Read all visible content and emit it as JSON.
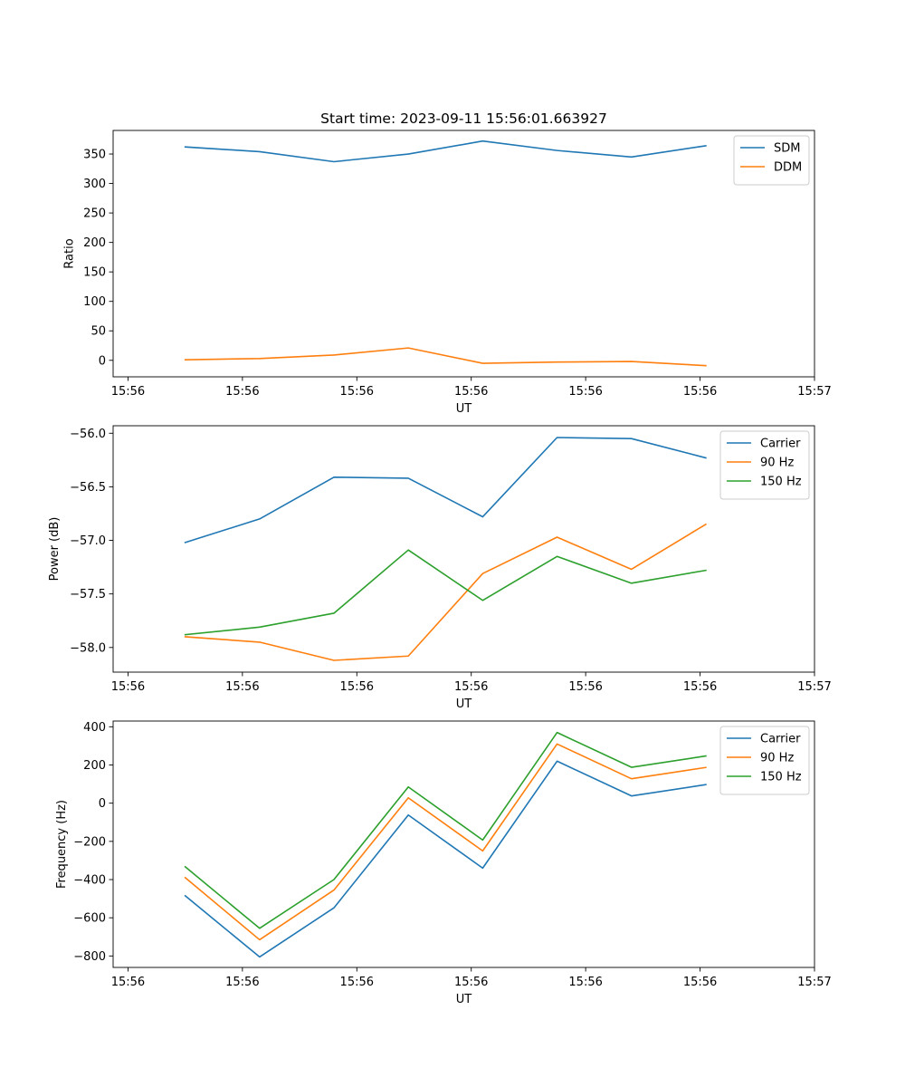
{
  "chart_data": [
    {
      "type": "line",
      "title": "Start time: 2023-09-11 15:56:01.663927",
      "xlabel": "UT",
      "ylabel": "Ratio",
      "x": [
        0.0,
        0.65,
        1.3,
        1.95,
        2.6,
        3.25,
        3.9,
        4.55
      ],
      "x_tick_positions": [
        -0.5,
        0.5,
        1.5,
        2.5,
        3.5,
        4.5,
        5.5
      ],
      "x_tick_labels": [
        "15:56",
        "15:56",
        "15:56",
        "15:56",
        "15:56",
        "15:56",
        "15:57"
      ],
      "xlim": [
        -0.63,
        5.5
      ],
      "ylim": [
        -28,
        390
      ],
      "y_ticks": [
        0,
        50,
        100,
        150,
        200,
        250,
        300,
        350
      ],
      "y_tick_labels": [
        "0",
        "50",
        "100",
        "150",
        "200",
        "250",
        "300",
        "350"
      ],
      "legend_position": "top-right",
      "series": [
        {
          "name": "SDM",
          "color": "#1f77b4",
          "values": [
            362,
            354,
            337,
            350,
            372,
            356,
            345,
            364
          ]
        },
        {
          "name": "DDM",
          "color": "#ff7f0e",
          "values": [
            1,
            3,
            9,
            21,
            -5,
            -3,
            -2,
            -9
          ]
        }
      ]
    },
    {
      "type": "line",
      "title": "",
      "xlabel": "UT",
      "ylabel": "Power (dB)",
      "x": [
        0.0,
        0.65,
        1.3,
        1.95,
        2.6,
        3.25,
        3.9,
        4.55
      ],
      "x_tick_positions": [
        -0.5,
        0.5,
        1.5,
        2.5,
        3.5,
        4.5,
        5.5
      ],
      "x_tick_labels": [
        "15:56",
        "15:56",
        "15:56",
        "15:56",
        "15:56",
        "15:56",
        "15:57"
      ],
      "xlim": [
        -0.63,
        5.5
      ],
      "ylim": [
        -58.23,
        -55.93
      ],
      "y_ticks": [
        -58.0,
        -57.5,
        -57.0,
        -56.5,
        -56.0
      ],
      "y_tick_labels": [
        "−58.0",
        "−57.5",
        "−57.0",
        "−56.5",
        "−56.0"
      ],
      "legend_position": "top-right",
      "series": [
        {
          "name": "Carrier",
          "color": "#1f77b4",
          "values": [
            -57.02,
            -56.8,
            -56.41,
            -56.42,
            -56.78,
            -56.04,
            -56.05,
            -56.23
          ]
        },
        {
          "name": "90 Hz",
          "color": "#ff7f0e",
          "values": [
            -57.9,
            -57.95,
            -58.12,
            -58.08,
            -57.31,
            -56.97,
            -57.27,
            -56.85
          ]
        },
        {
          "name": "150 Hz",
          "color": "#2ca02c",
          "values": [
            -57.88,
            -57.81,
            -57.68,
            -57.09,
            -57.56,
            -57.15,
            -57.4,
            -57.28
          ]
        }
      ]
    },
    {
      "type": "line",
      "title": "",
      "xlabel": "UT",
      "ylabel": "Frequency (Hz)",
      "x": [
        0.0,
        0.65,
        1.3,
        1.95,
        2.6,
        3.25,
        3.9,
        4.55
      ],
      "x_tick_positions": [
        -0.5,
        0.5,
        1.5,
        2.5,
        3.5,
        4.5,
        5.5
      ],
      "x_tick_labels": [
        "15:56",
        "15:56",
        "15:56",
        "15:56",
        "15:56",
        "15:56",
        "15:57"
      ],
      "xlim": [
        -0.63,
        5.5
      ],
      "ylim": [
        -860,
        430
      ],
      "y_ticks": [
        -800,
        -600,
        -400,
        -200,
        0,
        200,
        400
      ],
      "y_tick_labels": [
        "−800",
        "−600",
        "−400",
        "−200",
        "0",
        "200",
        "400"
      ],
      "legend_position": "top-right",
      "series": [
        {
          "name": "Carrier",
          "color": "#1f77b4",
          "values": [
            -485,
            -805,
            -548,
            -62,
            -340,
            220,
            38,
            97
          ]
        },
        {
          "name": "90 Hz",
          "color": "#ff7f0e",
          "values": [
            -390,
            -715,
            -455,
            28,
            -250,
            310,
            128,
            187
          ]
        },
        {
          "name": "150 Hz",
          "color": "#2ca02c",
          "values": [
            -333,
            -655,
            -400,
            85,
            -193,
            370,
            188,
            247
          ]
        }
      ]
    }
  ]
}
